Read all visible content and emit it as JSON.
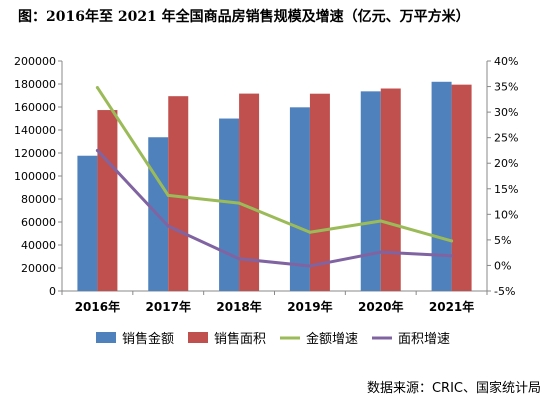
{
  "title": "图：2016年至 2021 年全国商品房销售规模及增速（亿元、万平方米）",
  "source": "数据来源：CRIC、国家统计局",
  "chart_data": {
    "type": "bar",
    "categories": [
      "2016年",
      "2017年",
      "2018年",
      "2019年",
      "2020年",
      "2021年"
    ],
    "y_left": {
      "ylim": [
        0,
        200000
      ],
      "ticks": [
        "0",
        "20000",
        "40000",
        "60000",
        "80000",
        "100000",
        "120000",
        "140000",
        "160000",
        "180000",
        "200000"
      ]
    },
    "y_right": {
      "ylim": [
        -5,
        40
      ],
      "ticks": [
        "-5%",
        "0%",
        "5%",
        "10%",
        "15%",
        "20%",
        "25%",
        "30%",
        "35%",
        "40%"
      ]
    },
    "series": [
      {
        "name": "销售金额",
        "kind": "bar",
        "axis": "left",
        "color": "#4F81BD",
        "values": [
          117627,
          133701,
          149973,
          159725,
          173613,
          181930
        ]
      },
      {
        "name": "销售面积",
        "kind": "bar",
        "axis": "left",
        "color": "#C0504D",
        "values": [
          157349,
          169408,
          171654,
          171558,
          176086,
          179433
        ]
      },
      {
        "name": "金额增速",
        "kind": "line",
        "axis": "right",
        "color": "#9BBB59",
        "values": [
          34.8,
          13.7,
          12.2,
          6.5,
          8.7,
          4.8
        ]
      },
      {
        "name": "面积增速",
        "kind": "line",
        "axis": "right",
        "color": "#8064A2",
        "values": [
          22.5,
          7.7,
          1.3,
          -0.1,
          2.6,
          1.9
        ]
      }
    ],
    "legend_position": "bottom",
    "grid": false
  }
}
